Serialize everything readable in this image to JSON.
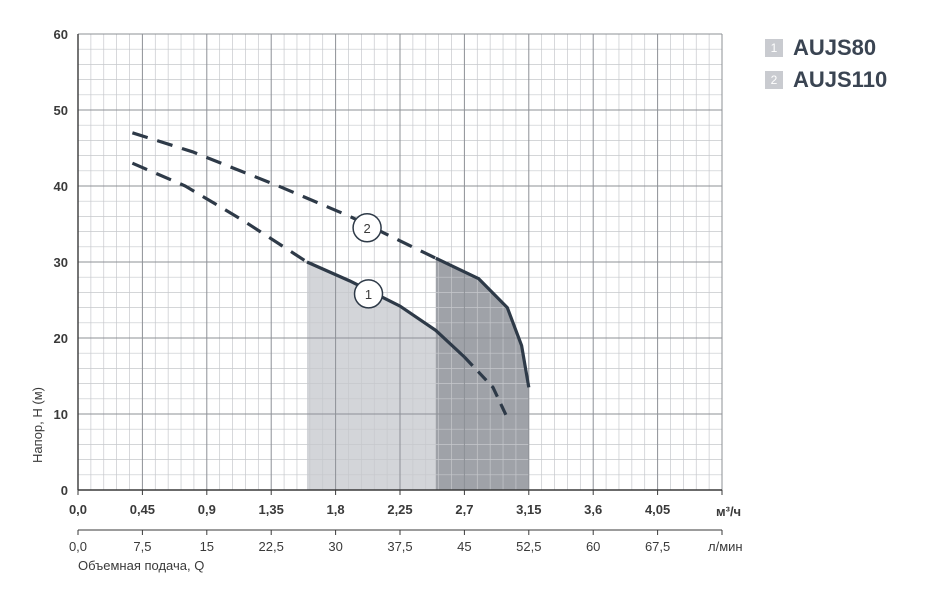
{
  "chart_data": {
    "type": "line",
    "y_label": "Напор, Н (м)",
    "x_label": "Объемная подача, Q",
    "x_unit_primary": "м³/ч",
    "x_unit_secondary": "л/мин",
    "ylim": [
      0,
      60
    ],
    "xlim": [
      0,
      4.5
    ],
    "y_ticks": [
      "0",
      "10",
      "20",
      "30",
      "40",
      "50",
      "60"
    ],
    "x_ticks_primary": [
      "0,0",
      "0,45",
      "0,9",
      "1,35",
      "1,8",
      "2,25",
      "2,7",
      "3,15",
      "3,6",
      "4,05"
    ],
    "x_ticks_secondary": [
      "0,0",
      "7,5",
      "15",
      "22,5",
      "30",
      "37,5",
      "45",
      "52,5",
      "60",
      "67,5"
    ],
    "grid": true,
    "legend_position": "top-right",
    "series": [
      {
        "name": "AUJS80",
        "marker": "1",
        "color": "#2e3a48",
        "dashed_left": [
          [
            0.38,
            43
          ],
          [
            0.75,
            40
          ],
          [
            1.15,
            35.5
          ],
          [
            1.6,
            30
          ]
        ],
        "solid": [
          [
            1.6,
            30
          ],
          [
            1.9,
            27.5
          ],
          [
            2.25,
            24.2
          ],
          [
            2.5,
            21
          ],
          [
            2.7,
            17.5
          ]
        ],
        "dashed_right": [
          [
            2.7,
            17.5
          ],
          [
            2.9,
            13.5
          ],
          [
            3.0,
            9.5
          ]
        ],
        "operating_range": [
          1.6,
          2.7
        ]
      },
      {
        "name": "AUJS110",
        "marker": "2",
        "color": "#2e3a48",
        "dashed_left": [
          [
            0.38,
            47
          ],
          [
            0.8,
            44.5
          ],
          [
            1.4,
            40
          ],
          [
            1.9,
            36
          ],
          [
            2.5,
            30.5
          ]
        ],
        "solid": [
          [
            2.5,
            30.5
          ],
          [
            2.8,
            27.8
          ],
          [
            3.0,
            24
          ],
          [
            3.1,
            19
          ],
          [
            3.15,
            13.5
          ]
        ],
        "operating_range": [
          2.5,
          3.15
        ]
      }
    ]
  },
  "legend": [
    {
      "num": "1",
      "name": "AUJS80"
    },
    {
      "num": "2",
      "name": "AUJS110"
    }
  ]
}
